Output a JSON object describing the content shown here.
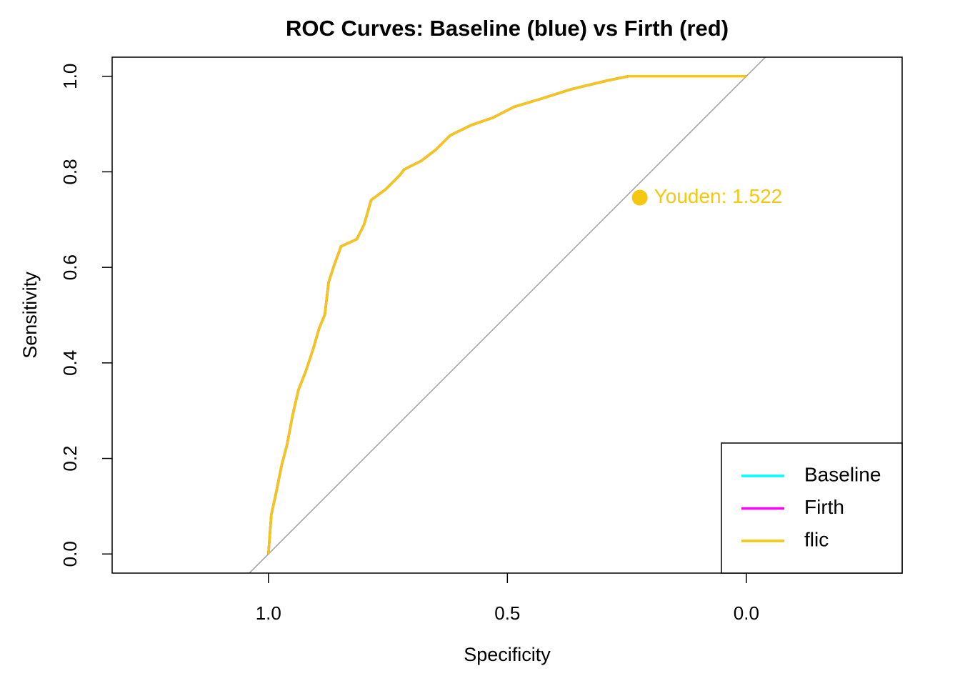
{
  "chart_data": {
    "type": "line",
    "title": "ROC Curves: Baseline (blue) vs Firth (red)",
    "x_label": "Specificity",
    "y_label": "Sensitivity",
    "xlim": [
      1.327,
      -0.326
    ],
    "ylim": [
      -0.04,
      1.04
    ],
    "xticks": [
      {
        "value": 1,
        "label": "1.0"
      },
      {
        "value": 0.5,
        "label": "0.5"
      },
      {
        "value": 0,
        "label": "0.0"
      }
    ],
    "yticks": [
      {
        "value": 0,
        "label": "0.0"
      },
      0.2,
      0.4,
      0.6,
      0.8,
      {
        "value": 1,
        "label": "1.0"
      }
    ],
    "x": [
      1.0,
      0.994,
      0.985,
      0.972,
      0.961,
      0.949,
      0.937,
      0.922,
      0.907,
      0.894,
      0.882,
      0.874,
      0.862,
      0.848,
      0.815,
      0.8,
      0.785,
      0.755,
      0.725,
      0.716,
      0.68,
      0.65,
      0.62,
      0.575,
      0.531,
      0.486,
      0.426,
      0.366,
      0.291,
      0.247,
      0.0
    ],
    "series": [
      {
        "name": "Baseline",
        "color": "#00ffff",
        "values": [
          0.0,
          0.082,
          0.123,
          0.187,
          0.229,
          0.292,
          0.344,
          0.382,
          0.427,
          0.472,
          0.501,
          0.569,
          0.606,
          0.644,
          0.659,
          0.689,
          0.741,
          0.763,
          0.793,
          0.805,
          0.823,
          0.846,
          0.876,
          0.898,
          0.913,
          0.936,
          0.954,
          0.973,
          0.991,
          1.0,
          1.0
        ]
      },
      {
        "name": "Firth",
        "color": "#ff00ff",
        "values": [
          0.0,
          0.082,
          0.123,
          0.187,
          0.229,
          0.292,
          0.344,
          0.382,
          0.427,
          0.472,
          0.501,
          0.569,
          0.606,
          0.644,
          0.659,
          0.689,
          0.741,
          0.763,
          0.793,
          0.805,
          0.823,
          0.846,
          0.876,
          0.898,
          0.913,
          0.936,
          0.954,
          0.973,
          0.991,
          1.0,
          1.0
        ]
      },
      {
        "name": "flic",
        "color": "#f5c710",
        "values": [
          0.0,
          0.082,
          0.123,
          0.187,
          0.229,
          0.292,
          0.344,
          0.382,
          0.427,
          0.472,
          0.501,
          0.569,
          0.606,
          0.644,
          0.659,
          0.689,
          0.741,
          0.763,
          0.793,
          0.805,
          0.823,
          0.846,
          0.876,
          0.898,
          0.913,
          0.936,
          0.954,
          0.973,
          0.991,
          1.0,
          1.0
        ]
      }
    ],
    "annotation": {
      "text": "Youden: 1.522",
      "x": 0.223,
      "y": 0.746,
      "color": "#f5c710"
    },
    "legend": "bottomright"
  }
}
